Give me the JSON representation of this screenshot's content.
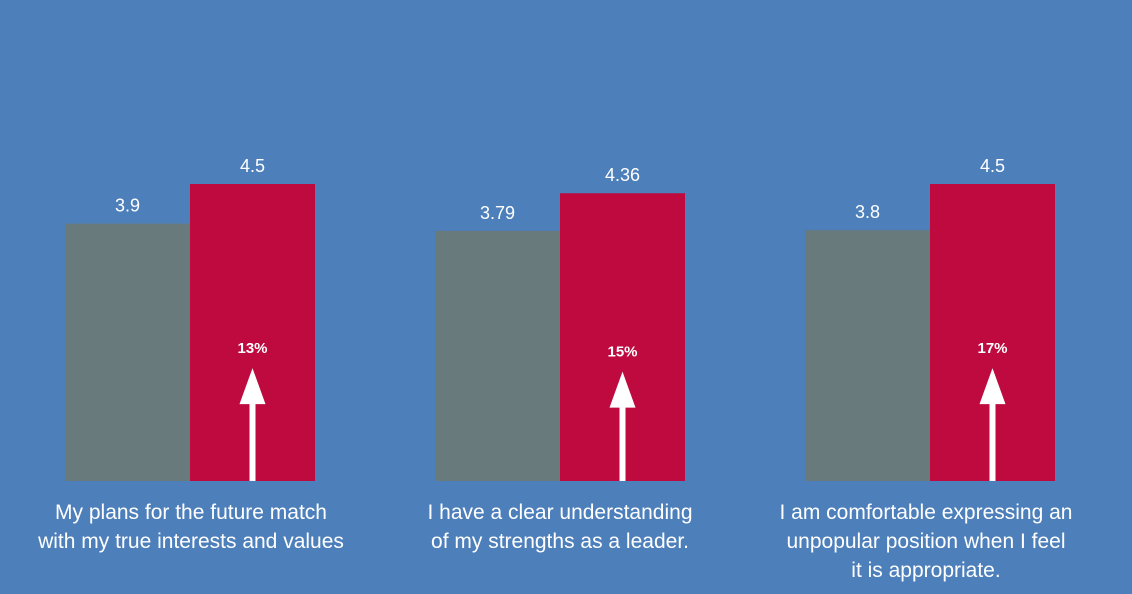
{
  "chart_data": {
    "type": "bar",
    "categories": [
      "My plans for the future match\nwith my true interests and values",
      "I have a clear understanding\nof my strengths as a leader.",
      "I am comfortable expressing an\nunpopular position when I feel\nit is appropriate."
    ],
    "series": [
      {
        "values": [
          3.9,
          3.79,
          3.8
        ],
        "color": "#687a7c"
      },
      {
        "values": [
          4.5,
          4.36,
          4.5
        ],
        "color": "#be0a3f"
      }
    ],
    "value_labels": [
      [
        "3.9",
        "3.79",
        "3.8"
      ],
      [
        "4.5",
        "4.36",
        "4.5"
      ]
    ],
    "increase_labels": [
      "13%",
      "15%",
      "17%"
    ],
    "ylim": [
      0,
      5.8
    ],
    "grid": false,
    "legend": "none",
    "colors": {
      "background": "#4d7fbb",
      "text": "#ffffff",
      "arrow": "#ffffff"
    }
  }
}
